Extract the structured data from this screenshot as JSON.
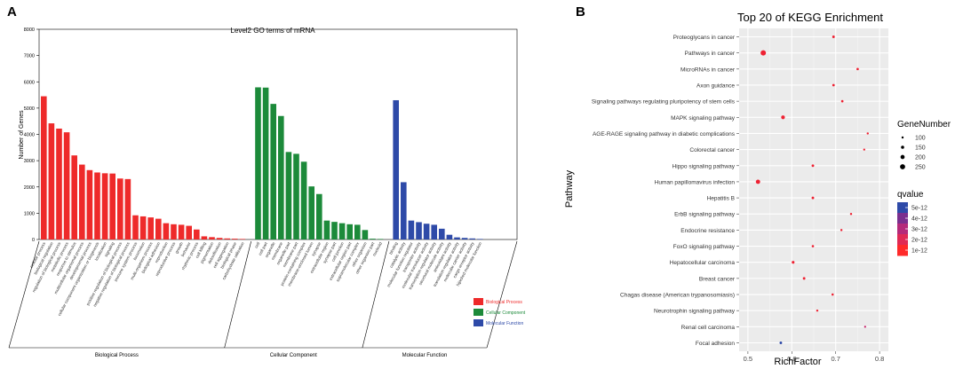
{
  "panels": {
    "a": "A",
    "b": "B"
  },
  "chart_data": [
    {
      "type": "bar",
      "title": "Level2 GO terms of mRNA",
      "xlabel": "",
      "ylabel": "Number of Genes",
      "ylim": [
        0,
        8000
      ],
      "yticks": [
        0,
        1000,
        2000,
        3000,
        4000,
        5000,
        6000,
        7000,
        8000
      ],
      "grid": false,
      "legend": [
        {
          "name": "Biological Process",
          "color": "#ee2a2a"
        },
        {
          "name": "Cellular Component",
          "color": "#1c8a3a"
        },
        {
          "name": "Molecular Function",
          "color": "#2e4aa8"
        }
      ],
      "groups": [
        {
          "name": "Biological Process",
          "color": "#ee2a2a",
          "categories": [
            "cellular process",
            "biological regulation",
            "regulation of biological process",
            "metabolic process",
            "response to stimulus",
            "multicellular organismal process",
            "developmental process",
            "cellular component organization or biogenesis",
            "localization",
            "signaling",
            "positive regulation of biological process",
            "negative regulation of biological process",
            "immune system process",
            "locomotion",
            "multi-organism process",
            "biological adhesion",
            "reproduction",
            "reproductive process",
            "growth",
            "behavior",
            "rhythmic process",
            "cell killing",
            "pigmentation",
            "detoxification",
            "cell aggregation",
            "biological phase",
            "carbohydrate utilization"
          ],
          "values": [
            5450,
            4420,
            4220,
            4080,
            3200,
            2850,
            2640,
            2550,
            2520,
            2510,
            2320,
            2300,
            920,
            880,
            840,
            790,
            620,
            580,
            560,
            520,
            380,
            120,
            90,
            60,
            40,
            30,
            20
          ]
        },
        {
          "name": "Cellular Component",
          "color": "#1c8a3a",
          "categories": [
            "cell",
            "cell part",
            "organelle",
            "membrane",
            "organelle part",
            "membrane part",
            "protein-containing complex",
            "membrane-enclosed lumen",
            "synapse",
            "extracellular region",
            "synapse part",
            "cell junction",
            "extracellular region part",
            "supramolecular complex",
            "other organism",
            "other organism part",
            "nucleoid"
          ],
          "values": [
            5790,
            5780,
            5160,
            4700,
            3330,
            3260,
            2960,
            2020,
            1730,
            720,
            670,
            620,
            580,
            560,
            360,
            30,
            20
          ]
        },
        {
          "name": "Molecular Function",
          "color": "#2e4aa8",
          "categories": [
            "binding",
            "catalytic activity",
            "molecular function regulator",
            "transporter activity",
            "molecular transducer activity",
            "transcription regulator activity",
            "structural molecule activity",
            "antioxidant activity",
            "translation regulator activity",
            "molecular carrier activity",
            "cargo receptor activity",
            "hijacked molecular function"
          ],
          "values": [
            5300,
            2180,
            720,
            660,
            600,
            560,
            410,
            180,
            80,
            60,
            40,
            20
          ]
        }
      ]
    },
    {
      "type": "scatter",
      "title": "Top 20 of KEGG Enrichment",
      "xlabel": "RichFactor",
      "ylabel": "Pathway",
      "xlim": [
        0.48,
        0.82
      ],
      "xticks": [
        0.5,
        0.6,
        0.7,
        0.8
      ],
      "grid": true,
      "size_legend_title": "GeneNumber",
      "size_legend": [
        100,
        150,
        200,
        250
      ],
      "color_legend_title": "qvalue",
      "color_legend": [
        "5e-12",
        "4e-12",
        "3e-12",
        "2e-12",
        "1e-12"
      ],
      "points": [
        {
          "pathway": "Proteoglycans in cancer",
          "x": 0.695,
          "size": 120,
          "color": "#ee2233"
        },
        {
          "pathway": "Pathways in cancer",
          "x": 0.535,
          "size": 260,
          "color": "#ee2233"
        },
        {
          "pathway": "MicroRNAs in cancer",
          "x": 0.75,
          "size": 110,
          "color": "#ee2233"
        },
        {
          "pathway": "Axon guidance",
          "x": 0.695,
          "size": 115,
          "color": "#ee2233"
        },
        {
          "pathway": "Signaling pathways regulating pluripotency of stem cells",
          "x": 0.715,
          "size": 110,
          "color": "#ee2233"
        },
        {
          "pathway": "MAPK signaling pathway",
          "x": 0.58,
          "size": 180,
          "color": "#ee2233"
        },
        {
          "pathway": "AGE-RAGE signaling pathway in diabetic complications",
          "x": 0.773,
          "size": 100,
          "color": "#ee2233"
        },
        {
          "pathway": "Colorectal cancer",
          "x": 0.765,
          "size": 95,
          "color": "#ee2233"
        },
        {
          "pathway": "Hippo signaling pathway",
          "x": 0.648,
          "size": 120,
          "color": "#ee2233"
        },
        {
          "pathway": "Human papillomavirus infection",
          "x": 0.523,
          "size": 210,
          "color": "#ee2233"
        },
        {
          "pathway": "Hepatitis B",
          "x": 0.648,
          "size": 118,
          "color": "#ee2233"
        },
        {
          "pathway": "ErbB signaling pathway",
          "x": 0.735,
          "size": 100,
          "color": "#ee2233"
        },
        {
          "pathway": "Endocrine resistance",
          "x": 0.713,
          "size": 100,
          "color": "#ee2233"
        },
        {
          "pathway": "FoxO signaling pathway",
          "x": 0.648,
          "size": 110,
          "color": "#ee2233"
        },
        {
          "pathway": "Hepatocellular carcinoma",
          "x": 0.603,
          "size": 130,
          "color": "#ee2233"
        },
        {
          "pathway": "Breast cancer",
          "x": 0.628,
          "size": 120,
          "color": "#ee2233"
        },
        {
          "pathway": "Chagas disease (American trypanosomiasis)",
          "x": 0.693,
          "size": 105,
          "color": "#ee2233"
        },
        {
          "pathway": "Neurotrophin signaling pathway",
          "x": 0.658,
          "size": 100,
          "color": "#ee2233"
        },
        {
          "pathway": "Renal cell carcinoma",
          "x": 0.767,
          "size": 90,
          "color": "#c8226a"
        },
        {
          "pathway": "Focal adhesion",
          "x": 0.575,
          "size": 120,
          "color": "#2e4aa8"
        }
      ]
    }
  ]
}
